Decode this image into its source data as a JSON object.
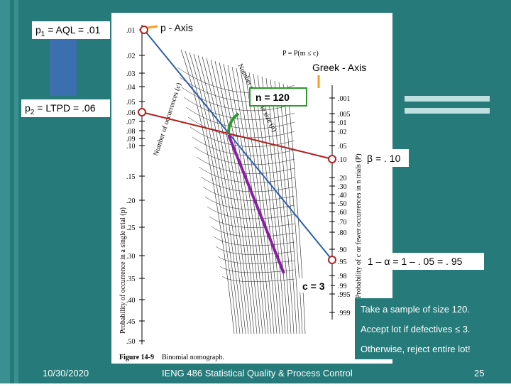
{
  "slide": {
    "p1_label": {
      "symbol": "p",
      "sub": "1",
      "rest": " = AQL = .01"
    },
    "p2_label": {
      "symbol": "p",
      "sub": "2",
      "rest": " = LTPD = .06"
    },
    "p_axis": "p - Axis",
    "greek_axis": "Greek - Axis",
    "n_label": "n = 120",
    "beta_label": "β = . 10",
    "alpha_label": "1 – α = 1 – . 05 = . 95",
    "c_label": "c = 3",
    "notes": [
      "Take a sample of size 120.",
      "Accept lot if defectives ≤ 3.",
      "Otherwise, reject entire lot!"
    ],
    "figure": {
      "caption_num": "Figure 14-9",
      "caption": "Binomial nomograph.",
      "left_axis_title": "Probability of occurrence in a single trial (p)",
      "right_axis_title": "Probability of c or fewer occurrences in n trials (P)",
      "inner_c_title": "Number of occurrences (c)",
      "inner_n_title": "Number of sample size (n)",
      "formula": "P = P(m ≤ c)",
      "left_ticks": [
        ".01",
        ".02",
        ".03",
        ".04",
        ".05",
        ".06",
        ".07",
        ".08",
        ".09",
        ".10",
        ".15",
        ".20",
        ".25",
        ".30",
        ".35",
        ".40",
        ".45",
        ".50"
      ],
      "right_ticks": [
        ".001",
        ".005",
        ".01",
        ".02",
        ".05",
        ".10",
        ".20",
        ".30",
        ".40",
        ".50",
        ".60",
        ".70",
        ".80",
        ".90",
        ".95",
        ".98",
        ".99",
        ".995",
        ".999"
      ]
    },
    "footer": {
      "date": "10/30/2020",
      "course": "IENG 486 Statistical Quality & Process Control",
      "page": "25"
    }
  }
}
